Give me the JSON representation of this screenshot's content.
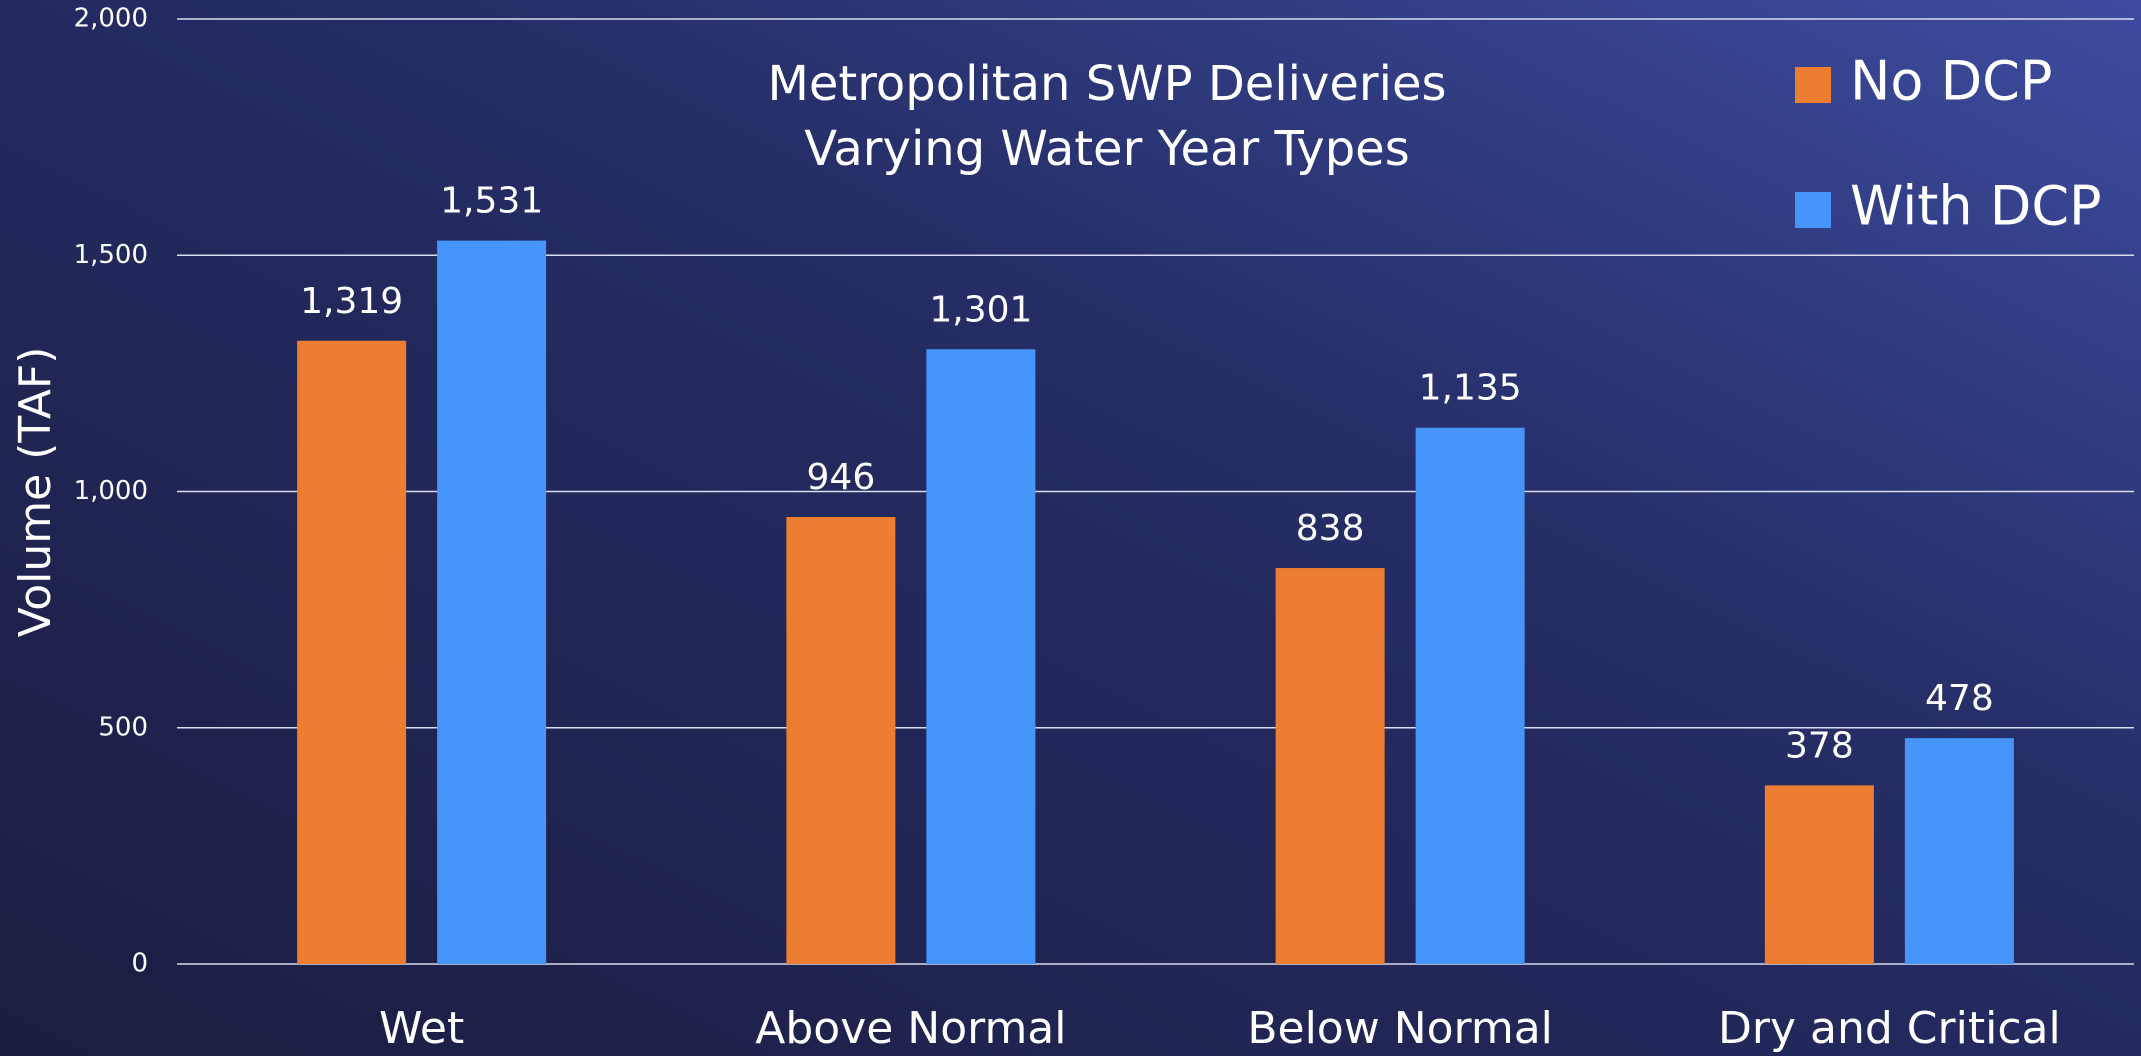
{
  "chart_data": {
    "type": "bar",
    "title": "Metropolitan SWP Deliveries",
    "subtitle": "Varying Water Year Types",
    "y_label": "Volume (TAF)",
    "categories": [
      "Wet",
      "Above Normal",
      "Below Normal",
      "Dry and Critical"
    ],
    "series": [
      {
        "name": "No DCP",
        "color": "#ed7d31",
        "values": [
          1319,
          946,
          838,
          378
        ],
        "value_labels": [
          "1,319",
          "946",
          "838",
          "378"
        ]
      },
      {
        "name": "With DCP",
        "color": "#4595fb",
        "values": [
          1531,
          1301,
          1135,
          478
        ],
        "value_labels": [
          "1,531",
          "1,301",
          "1,135",
          "478"
        ]
      }
    ],
    "ylim": [
      0,
      2000
    ],
    "yticks": [
      0,
      500,
      {
        "value": 1000,
        "label": "1,000"
      },
      {
        "value": 1500,
        "label": "1,500"
      },
      {
        "value": 2000,
        "label": "2,000"
      }
    ],
    "grid": true,
    "legend": "top-right"
  }
}
